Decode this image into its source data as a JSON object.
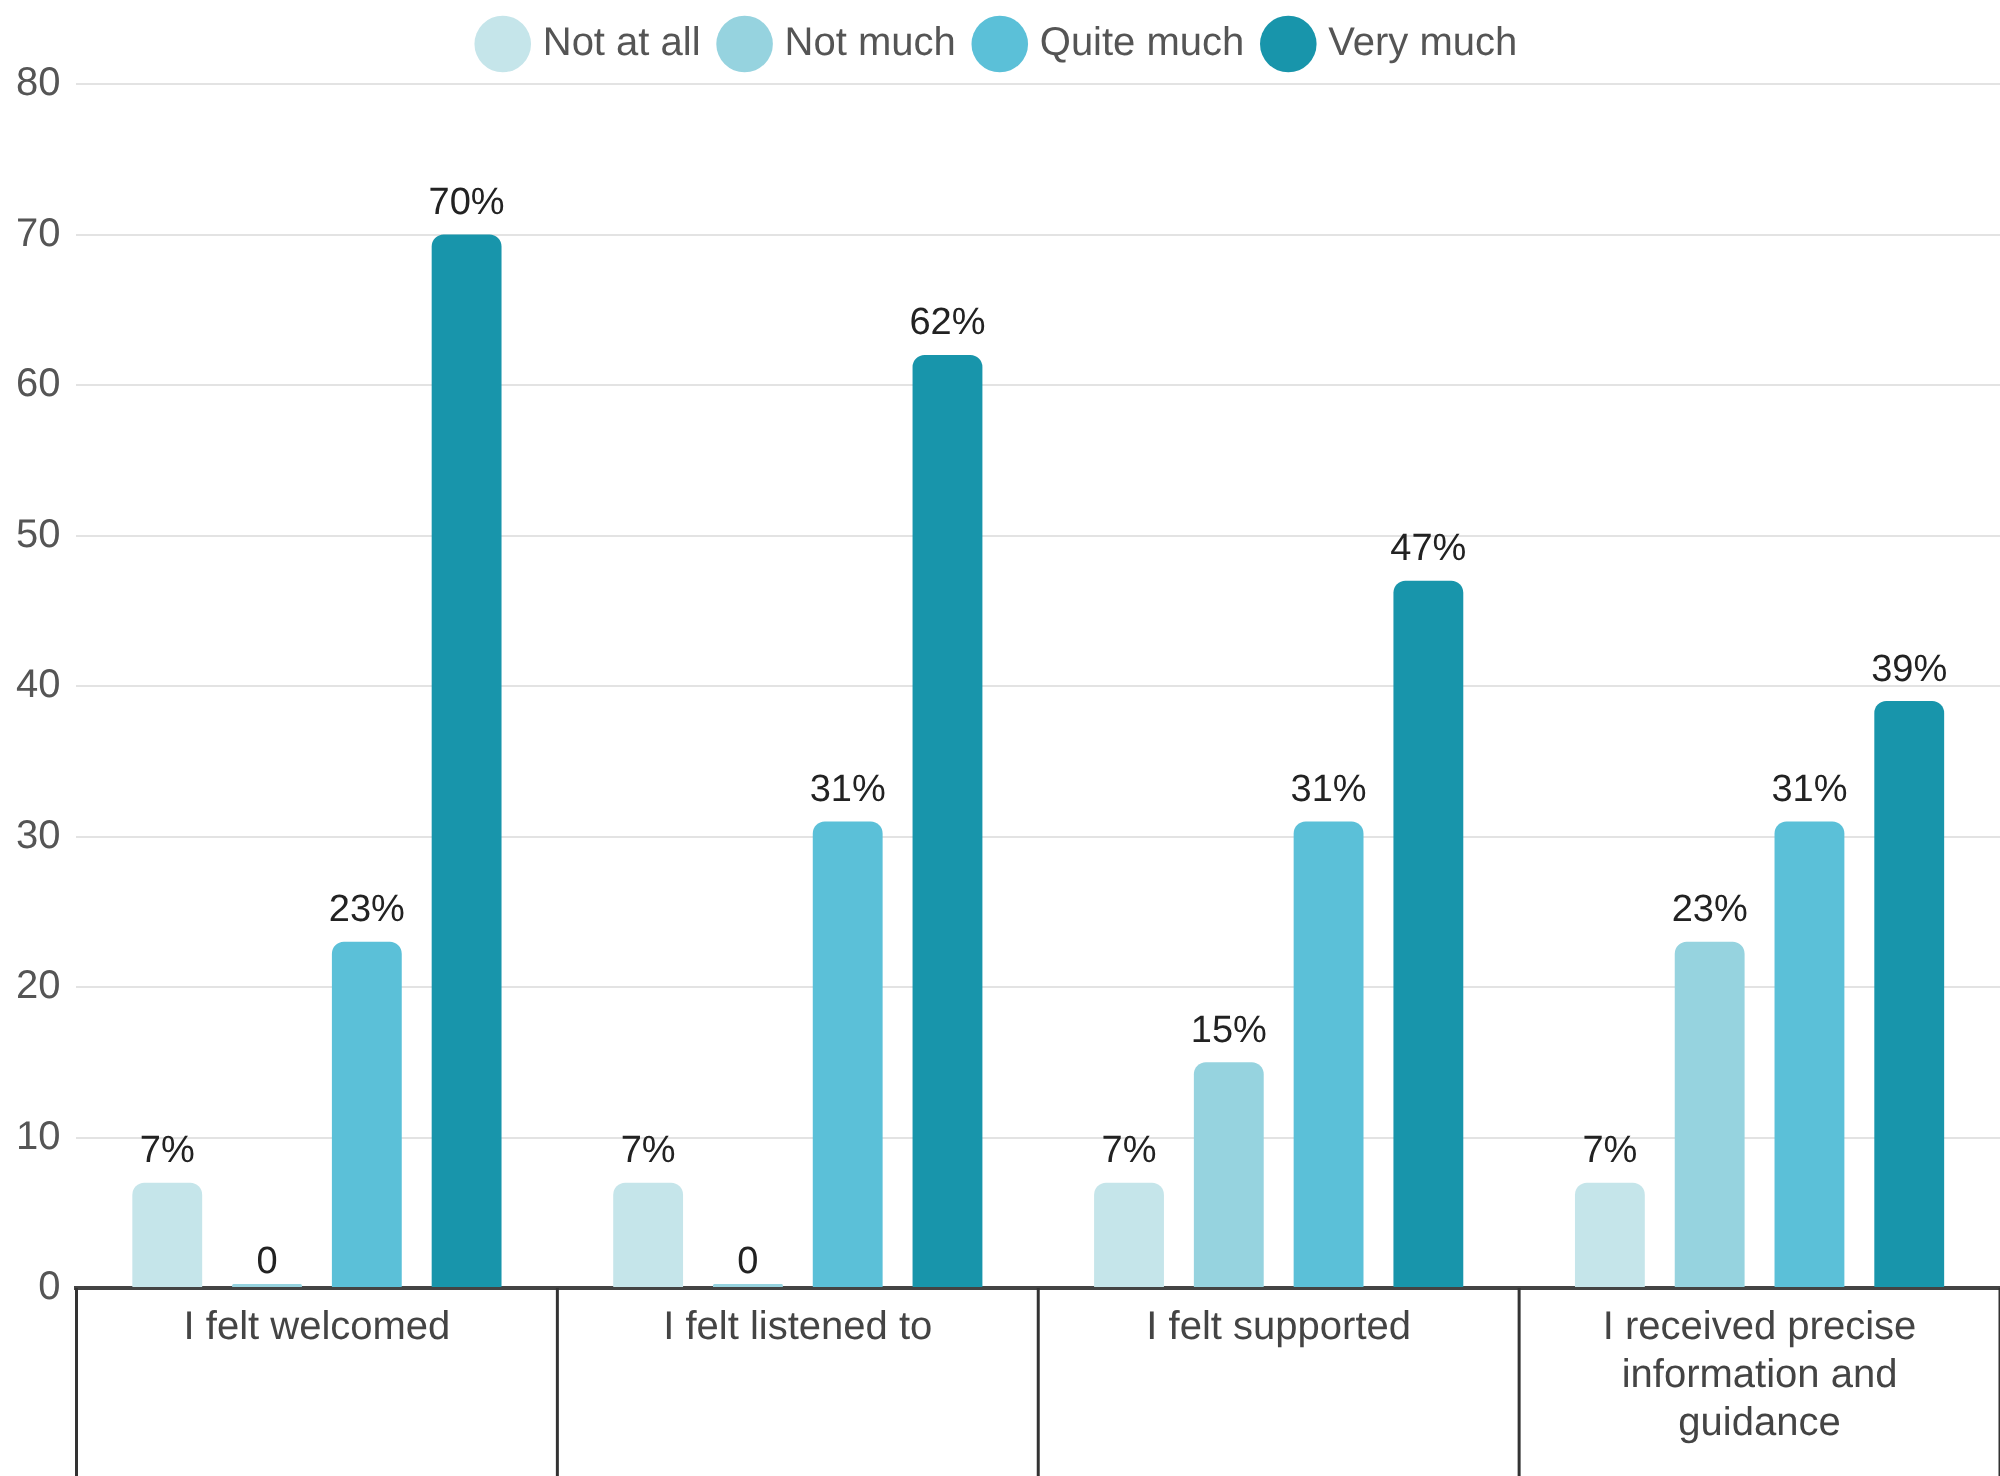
{
  "chart_data": {
    "type": "bar",
    "categories": [
      "I felt welcomed",
      "I felt listened to",
      "I felt supported",
      "I received precise information and guidance"
    ],
    "series": [
      {
        "name": "Not at all",
        "color": "#c5e5ea",
        "values": [
          7,
          7,
          7,
          7
        ],
        "value_labels": [
          "7%",
          "7%",
          "7%",
          "7%"
        ]
      },
      {
        "name": "Not much",
        "color": "#96d3df",
        "values": [
          0,
          0,
          15,
          23
        ],
        "value_labels": [
          "0",
          "0",
          "15%",
          "23%"
        ]
      },
      {
        "name": "Quite much",
        "color": "#5bc0d8",
        "values": [
          23,
          31,
          31,
          31
        ],
        "value_labels": [
          "23%",
          "31%",
          "31%",
          "31%"
        ]
      },
      {
        "name": "Very much",
        "color": "#1895ab",
        "values": [
          70,
          62,
          47,
          39
        ],
        "value_labels": [
          "70%",
          "62%",
          "47%",
          "39%"
        ]
      }
    ],
    "ylim": [
      0,
      80
    ],
    "yticks": [
      0,
      10,
      20,
      30,
      40,
      50,
      60,
      70,
      80
    ],
    "grid": "y",
    "legend": "top"
  }
}
